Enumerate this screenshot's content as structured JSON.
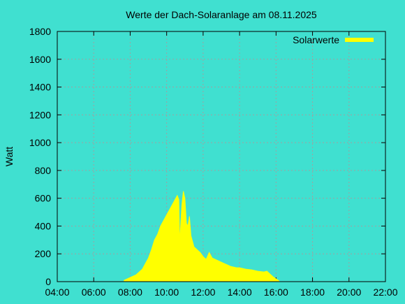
{
  "chart_data": {
    "type": "area",
    "title": "Werte der Dach-Solaranlage am 08.11.2025",
    "y_label": "Watt",
    "legend": "top-right",
    "grid": true,
    "x": [
      "07:40",
      "08:00",
      "08:20",
      "08:40",
      "08:50",
      "09:00",
      "09:10",
      "09:20",
      "09:30",
      "09:40",
      "09:50",
      "10:00",
      "10:10",
      "10:20",
      "10:30",
      "10:35",
      "10:40",
      "10:43",
      "10:50",
      "10:55",
      "11:00",
      "11:05",
      "11:10",
      "11:15",
      "11:20",
      "11:30",
      "11:40",
      "11:50",
      "12:00",
      "12:10",
      "12:20",
      "12:30",
      "12:40",
      "12:50",
      "13:00",
      "13:10",
      "13:20",
      "13:30",
      "13:40",
      "13:50",
      "14:00",
      "14:20",
      "14:40",
      "15:00",
      "15:20",
      "15:30",
      "15:40",
      "15:50",
      "16:00",
      "16:10"
    ],
    "series": [
      {
        "name": "Solarwerte",
        "color": "#ffff00",
        "values": [
          10,
          30,
          50,
          90,
          130,
          170,
          230,
          300,
          340,
          400,
          440,
          480,
          520,
          560,
          600,
          620,
          590,
          280,
          550,
          650,
          600,
          420,
          400,
          470,
          330,
          250,
          230,
          210,
          180,
          160,
          210,
          170,
          160,
          150,
          140,
          130,
          120,
          110,
          105,
          100,
          100,
          90,
          85,
          75,
          70,
          75,
          55,
          35,
          20,
          5
        ]
      }
    ],
    "xlim": [
      "04:00",
      "22:00"
    ],
    "xticks": [
      "04:00",
      "06:00",
      "08:00",
      "10:00",
      "12:00",
      "14:00",
      "16:00",
      "18:00",
      "20:00",
      "22:00"
    ],
    "ylim": [
      0,
      1800
    ],
    "yticks": [
      0,
      200,
      400,
      600,
      800,
      1000,
      1200,
      1400,
      1600,
      1800
    ]
  }
}
